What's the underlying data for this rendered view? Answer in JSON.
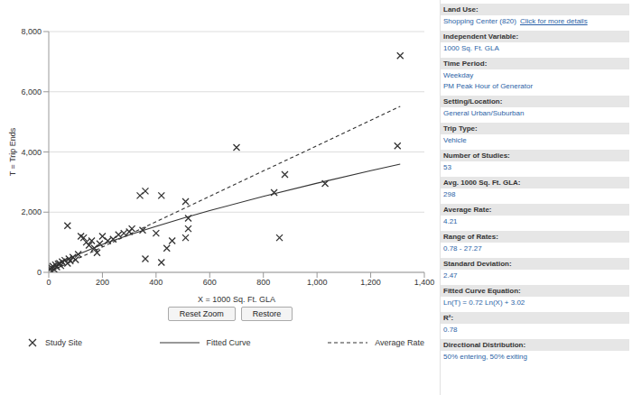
{
  "chart_data": {
    "type": "scatter",
    "x_label": "X = 1000 Sq. Ft. GLA",
    "y_label": "T = Trip Ends",
    "xlim": [
      0,
      1400
    ],
    "xticks": [
      0,
      200,
      400,
      600,
      800,
      {
        "value": 1000,
        "label": "1,000"
      },
      {
        "value": 1200,
        "label": "1,200"
      },
      {
        "value": 1400,
        "label": "1,400"
      }
    ],
    "ylim": [
      0,
      8000
    ],
    "yticks": [
      0,
      {
        "value": 2000,
        "label": "2,000"
      },
      {
        "value": 4000,
        "label": "4,000"
      },
      {
        "value": 6000,
        "label": "6,000"
      },
      {
        "value": 8000,
        "label": "8,000"
      }
    ],
    "grid": true,
    "legend": "bottom",
    "series": [
      {
        "name": "Study Site",
        "type": "scatter",
        "marker": "x",
        "color": "#333333",
        "x": [
          10,
          15,
          20,
          25,
          30,
          40,
          45,
          50,
          60,
          70,
          75,
          80,
          90,
          100,
          110,
          120,
          130,
          140,
          150,
          160,
          170,
          180,
          190,
          200,
          220,
          240,
          260,
          280,
          310,
          70,
          340,
          360,
          350,
          360,
          420,
          420,
          440,
          460,
          510,
          520,
          520,
          510,
          700,
          840,
          860,
          880,
          1030,
          1310,
          1300,
          5,
          35,
          400,
          300
        ],
        "values": [
          150,
          200,
          100,
          250,
          180,
          300,
          220,
          350,
          400,
          300,
          450,
          380,
          500,
          420,
          600,
          1200,
          1150,
          1000,
          900,
          1050,
          800,
          650,
          950,
          1200,
          1050,
          1100,
          1250,
          1300,
          1450,
          1550,
          2550,
          2700,
          1400,
          450,
          2550,
          330,
          800,
          1050,
          2350,
          1450,
          1800,
          1150,
          4150,
          2650,
          1150,
          3250,
          2950,
          7200,
          4200,
          120,
          280,
          1300,
          1350
        ]
      },
      {
        "name": "Fitted Curve",
        "type": "line",
        "line_style": "solid",
        "color": "#333333",
        "x": [
          5,
          25,
          50,
          100,
          200,
          300,
          400,
          500,
          600,
          800,
          1000,
          1200,
          1310
        ],
        "values": [
          65,
          208,
          343,
          564,
          929,
          1245,
          1531,
          1799,
          2051,
          2522,
          2963,
          3378,
          3598
        ]
      },
      {
        "name": "Average Rate",
        "type": "line",
        "line_style": "dashed",
        "color": "#333333",
        "x": [
          5,
          1310
        ],
        "values": [
          21,
          5515
        ]
      }
    ]
  },
  "buttons": [
    "Reset Zoom",
    "Restore"
  ],
  "side_panel": [
    {
      "label": "Land Use:",
      "value": "Shopping Center (820)",
      "link": "Click for more details"
    },
    {
      "label": "Independent Variable:",
      "value": "1000 Sq. Ft. GLA"
    },
    {
      "label": "Time Period:",
      "value": [
        "Weekday",
        "PM Peak Hour of Generator"
      ]
    },
    {
      "label": "Setting/Location:",
      "value": "General Urban/Suburban"
    },
    {
      "label": "Trip Type:",
      "value": "Vehicle"
    },
    {
      "label": "Number of Studies:",
      "value": "53"
    },
    {
      "label": "Avg. 1000 Sq. Ft. GLA:",
      "value": "298"
    },
    {
      "label": "Average Rate:",
      "value": "4.21"
    },
    {
      "label": "Range of Rates:",
      "value": "0.78 - 27.27"
    },
    {
      "label": "Standard Deviation:",
      "value": "2.47"
    },
    {
      "label": "Fitted Curve Equation:",
      "value": "Ln(T) = 0.72 Ln(X) + 3.02"
    },
    {
      "label": "R²:",
      "value": "0.78"
    },
    {
      "label": "Directional Distribution:",
      "value": "50% entering, 50% exiting"
    }
  ]
}
